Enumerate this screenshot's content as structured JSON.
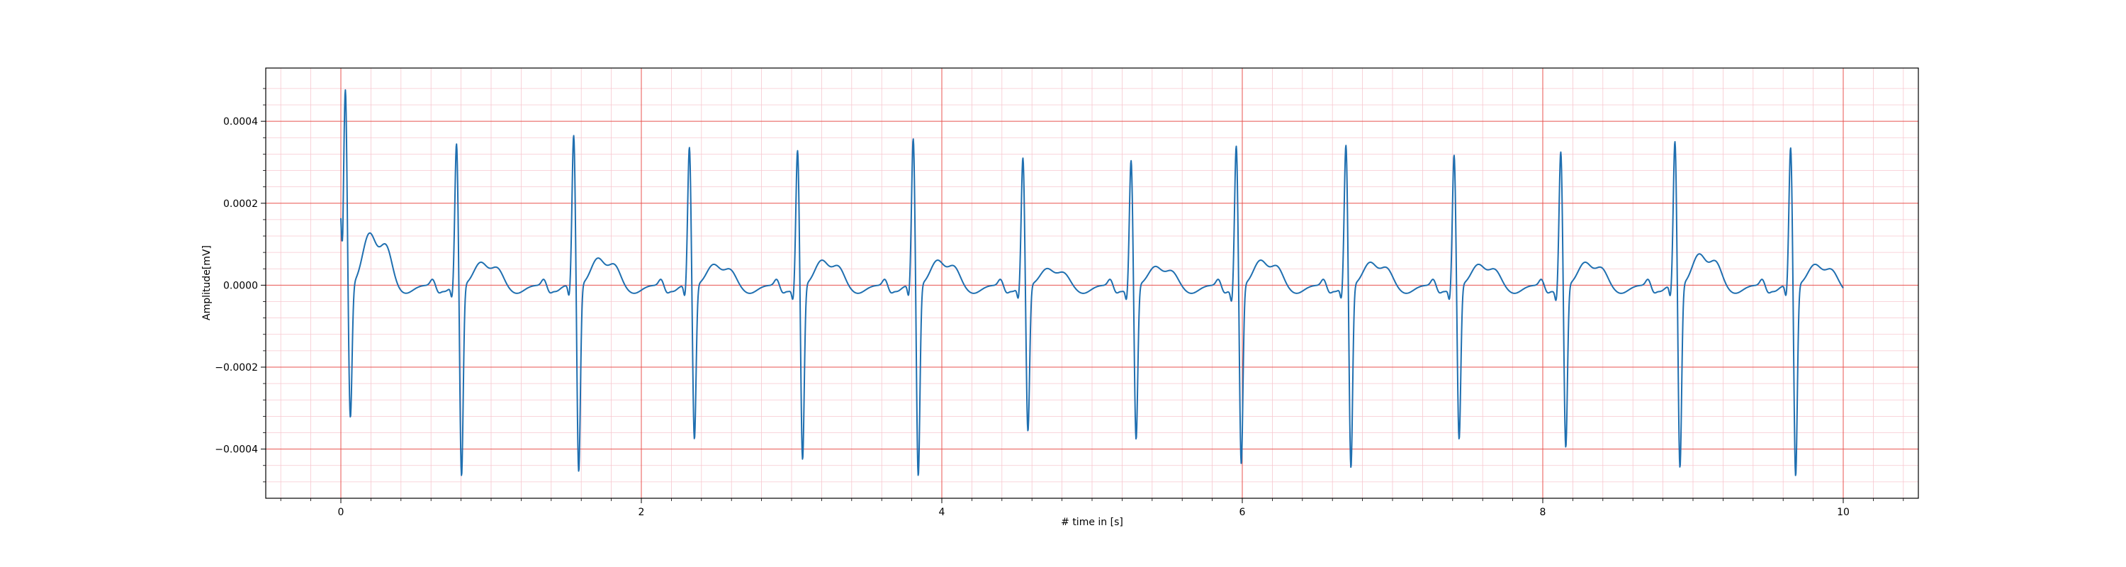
{
  "chart_data": {
    "type": "line",
    "title": "",
    "xlabel": "# time in [s]",
    "ylabel": "Amplitude[mV]",
    "xlim": [
      -0.5,
      10.5
    ],
    "ylim": [
      -0.00052,
      0.00053
    ],
    "x_ticks": [
      0,
      2,
      4,
      6,
      8,
      10
    ],
    "x_tick_labels": [
      "0",
      "2",
      "4",
      "6",
      "8",
      "10"
    ],
    "y_ticks": [
      0.0004,
      0.0002,
      0.0,
      -0.0002,
      -0.0004
    ],
    "y_tick_labels": [
      "0.0004",
      "0.0002",
      "0.0000",
      "−0.0002",
      "−0.0004"
    ],
    "grid": {
      "major": true,
      "minor": true,
      "major_color": "#e8534f",
      "minor_color": "#f7c7cf"
    },
    "legend": "none",
    "series": [
      {
        "color": "#1f6fb0",
        "beats": [
          {
            "r_time": 0.03,
            "r_peak": 0.00048,
            "s_min": -0.00033,
            "t_peak": 0.000125
          },
          {
            "r_time": 0.77,
            "r_peak": 0.00035,
            "s_min": -0.00047,
            "t_peak": 5.5e-05
          },
          {
            "r_time": 1.55,
            "r_peak": 0.00037,
            "s_min": -0.00046,
            "t_peak": 6.5e-05
          },
          {
            "r_time": 2.32,
            "r_peak": 0.00034,
            "s_min": -0.00038,
            "t_peak": 5e-05
          },
          {
            "r_time": 3.04,
            "r_peak": 0.000335,
            "s_min": -0.00043,
            "t_peak": 6e-05
          },
          {
            "r_time": 3.81,
            "r_peak": 0.000362,
            "s_min": -0.00047,
            "t_peak": 6e-05
          },
          {
            "r_time": 4.54,
            "r_peak": 0.000315,
            "s_min": -0.00036,
            "t_peak": 4e-05
          },
          {
            "r_time": 5.26,
            "r_peak": 0.00031,
            "s_min": -0.00038,
            "t_peak": 4.5e-05
          },
          {
            "r_time": 5.96,
            "r_peak": 0.00035,
            "s_min": -0.00044,
            "t_peak": 6e-05
          },
          {
            "r_time": 6.69,
            "r_peak": 0.000347,
            "s_min": -0.00045,
            "t_peak": 5.5e-05
          },
          {
            "r_time": 7.41,
            "r_peak": 0.000323,
            "s_min": -0.00038,
            "t_peak": 5e-05
          },
          {
            "r_time": 8.12,
            "r_peak": 0.000333,
            "s_min": -0.0004,
            "t_peak": 5.5e-05
          },
          {
            "r_time": 8.88,
            "r_peak": 0.000355,
            "s_min": -0.00045,
            "t_peak": 7.5e-05
          },
          {
            "r_time": 9.65,
            "r_peak": 0.00034,
            "s_min": -0.00047,
            "t_peak": 5e-05
          }
        ],
        "x_start": 0.0,
        "x_end": 10.0,
        "y_start": 0.00026
      }
    ]
  }
}
